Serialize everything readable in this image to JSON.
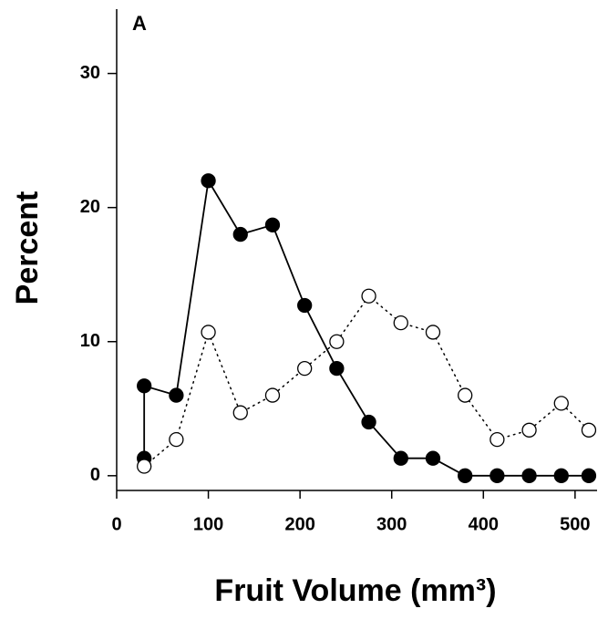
{
  "chart_data": {
    "type": "line",
    "panel_label": "A",
    "xlabel": "Fruit Volume (mm³)",
    "ylabel": "Percent",
    "xlim": [
      0,
      524
    ],
    "ylim": [
      -1.1,
      34.8
    ],
    "xticks": [
      0,
      100,
      200,
      300,
      400,
      500
    ],
    "yticks": [
      0,
      10,
      20,
      30
    ],
    "series": [
      {
        "color": "#000000",
        "marker": "filled",
        "line_style": "solid",
        "x": [
          30,
          30,
          65,
          100,
          135,
          170,
          205,
          240,
          275,
          310,
          345,
          380,
          415,
          450,
          485,
          515
        ],
        "values": [
          1.3,
          6.7,
          6.0,
          22.0,
          18.0,
          18.7,
          12.7,
          8.0,
          4.0,
          1.3,
          1.3,
          0,
          0,
          0,
          0,
          0
        ]
      },
      {
        "color": "#000000",
        "marker": "open",
        "line_style": "dotted",
        "x": [
          30,
          65,
          100,
          135,
          170,
          205,
          240,
          275,
          310,
          345,
          380,
          415,
          450,
          485,
          515
        ],
        "values": [
          0.7,
          2.7,
          10.7,
          4.7,
          6.0,
          8.0,
          10.0,
          13.4,
          11.4,
          10.7,
          6.0,
          2.7,
          3.4,
          5.4,
          3.4
        ]
      }
    ]
  }
}
